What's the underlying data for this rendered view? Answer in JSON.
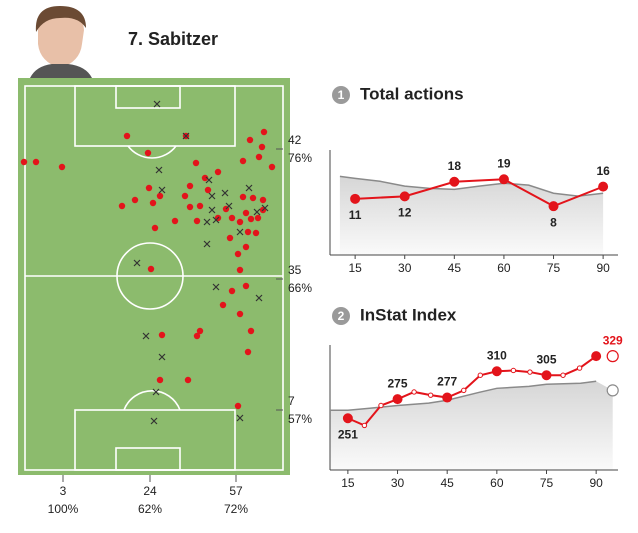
{
  "header": {
    "name": "7. Sabitzer"
  },
  "zones": {
    "right": [
      {
        "count": 42,
        "percent": "76%"
      },
      {
        "count": 35,
        "percent": "66%"
      },
      {
        "count": 7,
        "percent": "57%"
      }
    ],
    "bottom": [
      {
        "count": 3,
        "percent": "100%"
      },
      {
        "count": 24,
        "percent": "62%"
      },
      {
        "count": 57,
        "percent": "72%"
      }
    ]
  },
  "chart_data": [
    {
      "type": "scatter",
      "xlim": [
        0,
        272
      ],
      "ylim": [
        0,
        397
      ],
      "series": [
        {
          "color": "#e3141b",
          "marker": "dot",
          "x": [
            6,
            18,
            44,
            109,
            168,
            130,
            254,
            246,
            244,
            241,
            232,
            225,
            178,
            172,
            187,
            200,
            167,
            142,
            131,
            117,
            104,
            135,
            190,
            182,
            172,
            157,
            179,
            200,
            208,
            214,
            225,
            235,
            245,
            245,
            228,
            233,
            240,
            222,
            230,
            238,
            212,
            137,
            228,
            220,
            222,
            133,
            228,
            214,
            205,
            222,
            182,
            179,
            144,
            233,
            230,
            170,
            142,
            220
          ],
          "values": [
            313,
            313,
            308,
            339,
            339,
            322,
            308,
            343,
            328,
            318,
            335,
            314,
            312,
            289,
            297,
            303,
            279,
            279,
            287,
            275,
            269,
            272,
            285,
            269,
            268,
            254,
            254,
            257,
            266,
            257,
            278,
            277,
            275,
            265,
            262,
            256,
            257,
            253,
            243,
            242,
            237,
            247,
            228,
            221,
            205,
            206,
            189,
            184,
            170,
            161,
            144,
            139,
            140,
            144,
            123,
            95,
            95,
            69
          ]
        },
        {
          "color": "#333333",
          "marker": "cross",
          "x": [
            139,
            168,
            141,
            144,
            191,
            194,
            207,
            194,
            198,
            231,
            211,
            189,
            239,
            247,
            222,
            189,
            119,
            198,
            241,
            128,
            144,
            138,
            136,
            222
          ],
          "values": [
            371,
            339,
            305,
            285,
            295,
            279,
            282,
            265,
            255,
            287,
            269,
            253,
            263,
            267,
            243,
            231,
            212,
            188,
            177,
            139,
            118,
            83,
            54,
            57
          ]
        }
      ]
    },
    {
      "type": "line",
      "badge": "1",
      "title": "Total actions",
      "xlim": [
        7.4,
        94.5
      ],
      "ylim": [
        -12,
        31
      ],
      "xticks": [
        15,
        30,
        45,
        60,
        75,
        90
      ],
      "series": [
        {
          "color": "#8a8a8a",
          "area": true,
          "markers": false,
          "x": [
            10.4,
            15,
            22.5,
            30,
            37.5,
            45,
            52.5,
            60,
            67.5,
            75,
            82.5,
            90
          ],
          "values": [
            20.2,
            19.4,
            18.2,
            16.2,
            15.3,
            14.9,
            16.2,
            17.4,
            16.6,
            13.3,
            12.1,
            13.3
          ]
        },
        {
          "color": "#e3141b",
          "markers": true,
          "x": [
            15,
            30,
            45,
            60,
            75,
            90
          ],
          "values": [
            11,
            12,
            18,
            19,
            8,
            16
          ]
        }
      ]
    },
    {
      "type": "line",
      "badge": "2",
      "title": "InStat Index",
      "xlim": [
        9.6,
        96.6
      ],
      "ylim": [
        186,
        343
      ],
      "xticks": [
        15,
        30,
        45,
        60,
        75,
        90
      ],
      "series": [
        {
          "color": "#8a8a8a",
          "area": true,
          "markers": false,
          "last_marker": "open",
          "x": [
            9.6,
            15,
            21.6,
            30,
            39.4,
            45,
            54.7,
            60,
            69.7,
            75,
            85.3,
            90,
            95
          ],
          "values": [
            261,
            261,
            263.5,
            267,
            270,
            273.6,
            283.6,
            288.6,
            291,
            293.7,
            295,
            297.4,
            286
          ]
        },
        {
          "color": "#e3141b",
          "markers": true,
          "last_marker": "open",
          "x": [
            15,
            20,
            25,
            30,
            35,
            40,
            45,
            50,
            55,
            60,
            65,
            70,
            75,
            80,
            85,
            90,
            95
          ],
          "values": [
            251,
            242,
            267,
            275,
            284,
            280,
            277,
            286,
            305,
            310,
            311,
            309,
            305,
            305,
            314,
            329,
            329
          ],
          "value_labels": [
            "251",
            null,
            null,
            "275",
            null,
            null,
            "277",
            null,
            null,
            "310",
            null,
            null,
            "305",
            null,
            null,
            null,
            "329"
          ]
        }
      ]
    }
  ]
}
